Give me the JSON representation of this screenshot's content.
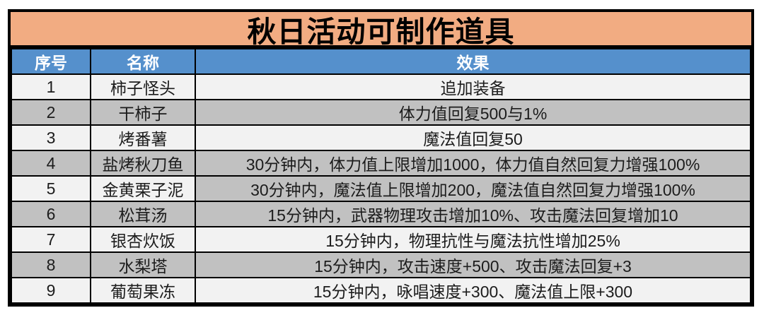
{
  "title": "秋日活动可制作道具",
  "columns": [
    "序号",
    "名称",
    "效果"
  ],
  "rows": [
    {
      "no": "1",
      "name": "柿子怪头",
      "effect": "追加装备"
    },
    {
      "no": "2",
      "name": "干柿子",
      "effect": "体力值回复500与1%"
    },
    {
      "no": "3",
      "name": "烤番薯",
      "effect": "魔法值回复50"
    },
    {
      "no": "4",
      "name": "盐烤秋刀鱼",
      "effect": "30分钟内，体力值上限增加1000，体力值自然回复力增强100%"
    },
    {
      "no": "5",
      "name": "金黄栗子泥",
      "effect": "30分钟内，魔法值上限增加200，魔法值自然回复力增强100%"
    },
    {
      "no": "6",
      "name": "松茸汤",
      "effect": "15分钟内，武器物理攻击增加10%、攻击魔法回复增加10"
    },
    {
      "no": "7",
      "name": "银杏炊饭",
      "effect": "15分钟内，物理抗性与魔法抗性增加25%"
    },
    {
      "no": "8",
      "name": "水梨塔",
      "effect": "15分钟内，攻击速度+500、攻击魔法回复+3"
    },
    {
      "no": "9",
      "name": "葡萄果冻",
      "effect": "15分钟内，咏唱速度+300、魔法值上限+300"
    }
  ],
  "colors": {
    "title_bg": "#F2AC82",
    "header_bg": "#5590CC",
    "header_text": "#FFFFFF",
    "row_light": "#F2F2F2",
    "row_gray": "#C1C1C1",
    "border": "#000000",
    "text": "#1C1C1C"
  }
}
